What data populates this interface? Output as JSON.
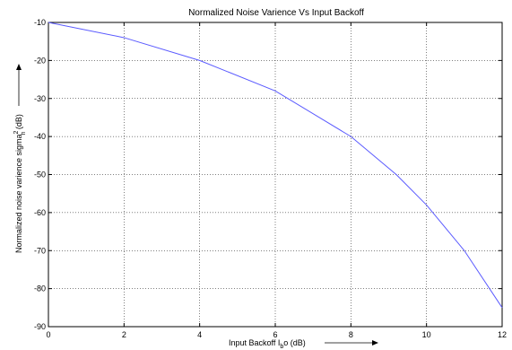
{
  "chart_data": {
    "type": "line",
    "title": "Normalized Noise Varience Vs Input Backoff",
    "xlabel_main": "Input Backoff I",
    "xlabel_sub": "b",
    "xlabel_tail": "o (dB)",
    "ylabel_main": "Normalized noise varience sigma",
    "ylabel_sub": "n",
    "ylabel_sup": "2",
    "ylabel_tail": " (dB)",
    "xlim": [
      0,
      12
    ],
    "ylim": [
      -90,
      -10
    ],
    "xticks": [
      0,
      2,
      4,
      6,
      8,
      10,
      12
    ],
    "yticks": [
      -10,
      -20,
      -30,
      -40,
      -50,
      -60,
      -70,
      -80,
      -90
    ],
    "grid": true,
    "series": [
      {
        "color": "#5a5aff",
        "x": [
          0,
          2,
          4,
          6,
          8,
          9.2,
          10,
          11,
          12
        ],
        "y": [
          -10,
          -14,
          -20,
          -28,
          -40,
          -50,
          -58,
          -70,
          -85
        ]
      }
    ]
  }
}
